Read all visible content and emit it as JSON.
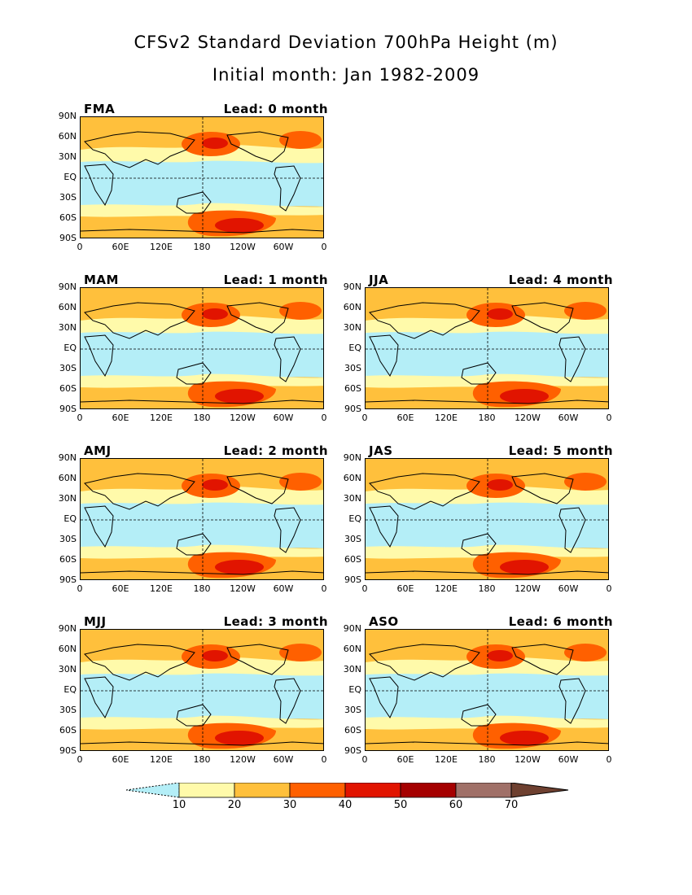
{
  "title_line1": "CFSv2 Standard Deviation 700hPa Height (m)",
  "title_line2": "Initial month: Jan 1982-2009",
  "y_axis_labels": [
    "90N",
    "60N",
    "30N",
    "EQ",
    "30S",
    "60S",
    "90S"
  ],
  "x_axis_labels": [
    "0",
    "60E",
    "120E",
    "180",
    "120W",
    "60W",
    "0"
  ],
  "panels": [
    {
      "season": "FMA",
      "lead": "Lead: 0 month"
    },
    {
      "season": "MAM",
      "lead": "Lead: 1 month"
    },
    {
      "season": "AMJ",
      "lead": "Lead: 2 month"
    },
    {
      "season": "MJJ",
      "lead": "Lead: 3 month"
    },
    {
      "season": "JJA",
      "lead": "Lead: 4 month"
    },
    {
      "season": "JAS",
      "lead": "Lead: 5 month"
    },
    {
      "season": "ASO",
      "lead": "Lead: 6 month"
    }
  ],
  "colorbar": {
    "labels": [
      "10",
      "20",
      "30",
      "40",
      "50",
      "60",
      "70"
    ],
    "colors": [
      "#b4eef7",
      "#fffaaa",
      "#ffc03c",
      "#ff6000",
      "#e11400",
      "#a50000",
      "#a07068",
      "#6e4030"
    ]
  }
}
